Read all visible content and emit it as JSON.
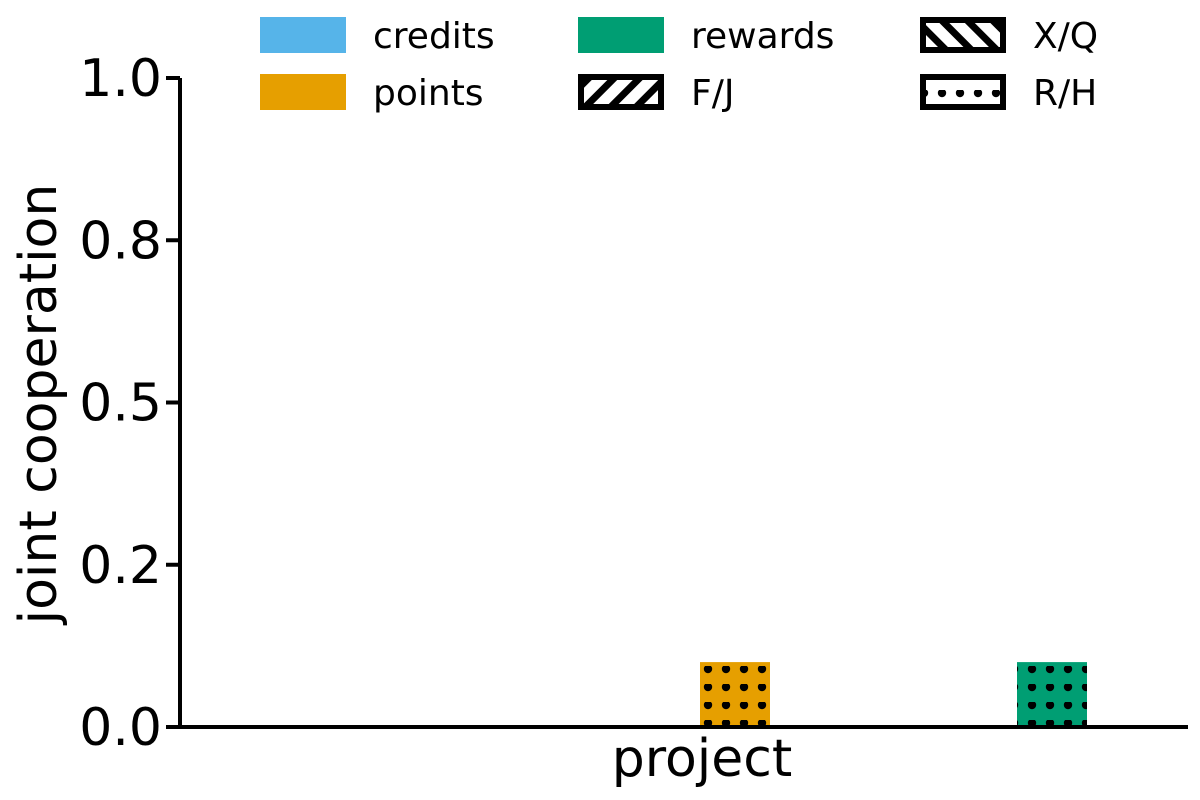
{
  "chart_data": {
    "type": "bar",
    "title": "",
    "xlabel": "project",
    "ylabel": "joint cooperation",
    "ylim": [
      0,
      1
    ],
    "y_ticks": [
      "0.0",
      "0.2",
      "0.5",
      "0.8",
      "1.0"
    ],
    "y_tick_values": [
      0,
      0.25,
      0.5,
      0.75,
      1.0
    ],
    "categories": [
      "project"
    ],
    "legend_position": "top",
    "color_groups": [
      {
        "name": "credits",
        "color": "#56B4E9"
      },
      {
        "name": "points",
        "color": "#E69F00"
      },
      {
        "name": "rewards",
        "color": "#009E73"
      }
    ],
    "pattern_groups": [
      {
        "name": "F/J",
        "pattern": "forward-hatch"
      },
      {
        "name": "X/Q",
        "pattern": "back-hatch"
      },
      {
        "name": "R/H",
        "pattern": "dots"
      }
    ],
    "series": [
      {
        "color_group": "credits",
        "pattern_group": "F/J",
        "value": 0
      },
      {
        "color_group": "credits",
        "pattern_group": "X/Q",
        "value": 0
      },
      {
        "color_group": "credits",
        "pattern_group": "R/H",
        "value": 0
      },
      {
        "color_group": "points",
        "pattern_group": "F/J",
        "value": 0
      },
      {
        "color_group": "points",
        "pattern_group": "X/Q",
        "value": 0
      },
      {
        "color_group": "points",
        "pattern_group": "R/H",
        "value": 0.1
      },
      {
        "color_group": "rewards",
        "pattern_group": "F/J",
        "value": 0
      },
      {
        "color_group": "rewards",
        "pattern_group": "X/Q",
        "value": 0
      },
      {
        "color_group": "rewards",
        "pattern_group": "R/H",
        "value": 0.1
      }
    ]
  }
}
